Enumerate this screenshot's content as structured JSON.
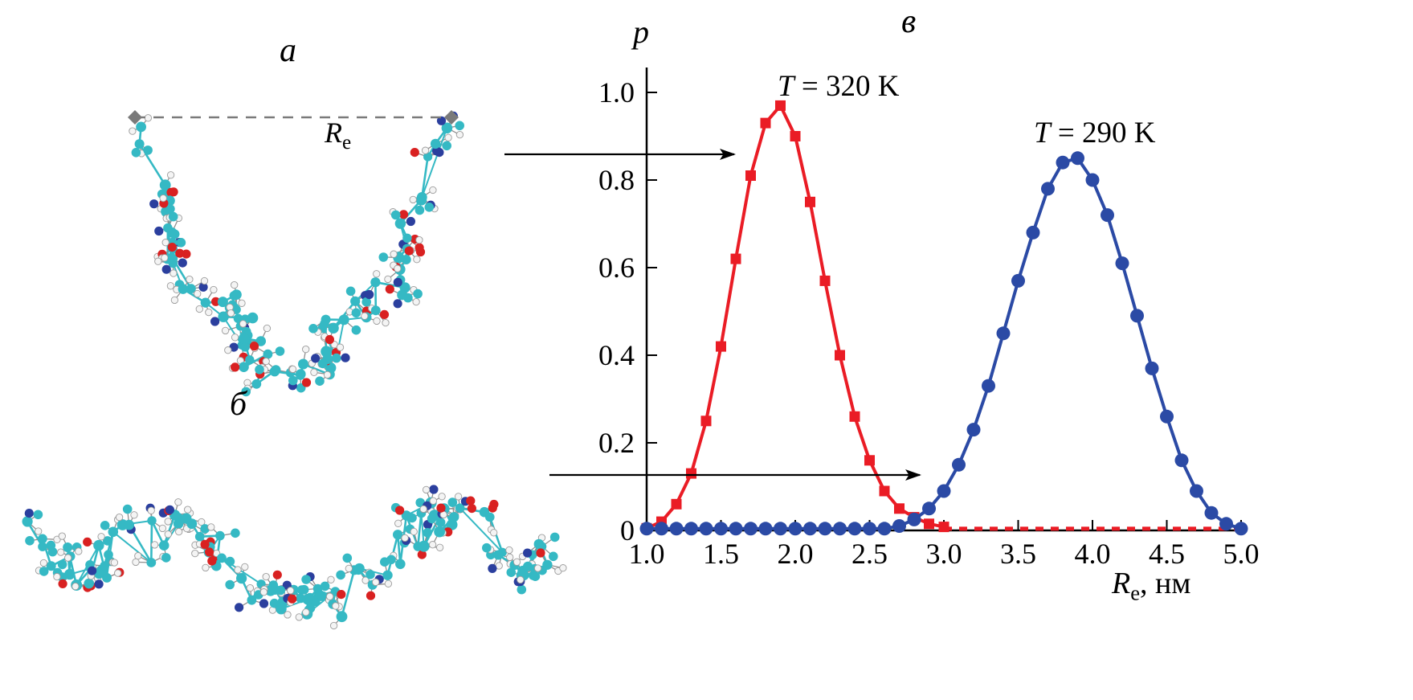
{
  "figure": {
    "panel_labels": {
      "a": "а",
      "b": "б",
      "v": "в"
    },
    "re_annotation": {
      "var": "R",
      "sub": "e"
    },
    "molecules": {
      "a": {
        "description": "collapsed V-shaped polymer conformation, ball-and-stick model"
      },
      "b": {
        "description": "extended polymer coil conformation, ball-and-stick model"
      },
      "atom_colors": {
        "carbon": "#35b9c4",
        "hydrogen": "#f4f4f4",
        "oxygen": "#d92121",
        "nitrogen": "#2b3f9e"
      },
      "endpoint_marker_color": "#7a7a7a",
      "dashed_line_color": "#7a7a7a"
    },
    "arrow_color": "#000000"
  },
  "chart_data": {
    "type": "line",
    "title": "",
    "ylabel": "p",
    "xlabel": {
      "var": "R",
      "sub": "e",
      "rest": ", нм"
    },
    "xlim": [
      1.0,
      5.0
    ],
    "ylim": [
      0,
      1.08
    ],
    "grid": false,
    "legend_position": "inline-annotations",
    "axis_color": "#000000",
    "x_ticks": [
      1.0,
      1.5,
      2.0,
      2.5,
      3.0,
      3.5,
      4.0,
      4.5,
      5.0
    ],
    "x_tick_labels": [
      "1.0",
      "1.5",
      "2.0",
      "2.5",
      "3.0",
      "3.5",
      "4.0",
      "4.5",
      "5.0"
    ],
    "y_ticks": [
      0,
      0.2,
      0.4,
      0.6,
      0.8,
      1.0
    ],
    "y_tick_labels": [
      "0",
      "0.2",
      "0.4",
      "0.6",
      "0.8",
      "1.0"
    ],
    "series": [
      {
        "name": "T = 320 K",
        "label": {
          "prefix": "T",
          "rest": " = 320 K"
        },
        "color": "#ea1c25",
        "marker": "square",
        "x": [
          1.0,
          1.1,
          1.2,
          1.3,
          1.4,
          1.5,
          1.6,
          1.7,
          1.8,
          1.9,
          2.0,
          2.1,
          2.2,
          2.3,
          2.4,
          2.5,
          2.6,
          2.7,
          2.8,
          2.9,
          3.0
        ],
        "y": [
          0.005,
          0.02,
          0.06,
          0.13,
          0.25,
          0.42,
          0.62,
          0.81,
          0.93,
          0.97,
          0.9,
          0.75,
          0.57,
          0.4,
          0.26,
          0.16,
          0.09,
          0.05,
          0.03,
          0.015,
          0.008
        ],
        "tail": {
          "x_from": 3.0,
          "x_to": 5.0,
          "p": 0.004,
          "style": "dashed"
        }
      },
      {
        "name": "T = 290 K",
        "label": {
          "prefix": "T",
          "rest": " = 290 K"
        },
        "color": "#2b4aa5",
        "marker": "circle",
        "x": [
          1.0,
          1.1,
          1.2,
          1.3,
          1.4,
          1.5,
          1.6,
          1.7,
          1.8,
          1.9,
          2.0,
          2.1,
          2.2,
          2.3,
          2.4,
          2.5,
          2.6,
          2.7,
          2.8,
          2.9,
          3.0,
          3.1,
          3.2,
          3.3,
          3.4,
          3.5,
          3.6,
          3.7,
          3.8,
          3.9,
          4.0,
          4.1,
          4.2,
          4.3,
          4.4,
          4.5,
          4.6,
          4.7,
          4.8,
          4.9,
          5.0
        ],
        "y": [
          0.004,
          0.004,
          0.004,
          0.004,
          0.004,
          0.004,
          0.004,
          0.004,
          0.004,
          0.004,
          0.004,
          0.004,
          0.004,
          0.004,
          0.004,
          0.004,
          0.004,
          0.01,
          0.025,
          0.05,
          0.09,
          0.15,
          0.23,
          0.33,
          0.45,
          0.57,
          0.68,
          0.78,
          0.84,
          0.85,
          0.8,
          0.72,
          0.61,
          0.49,
          0.37,
          0.26,
          0.16,
          0.09,
          0.04,
          0.015,
          0.004
        ]
      }
    ]
  }
}
